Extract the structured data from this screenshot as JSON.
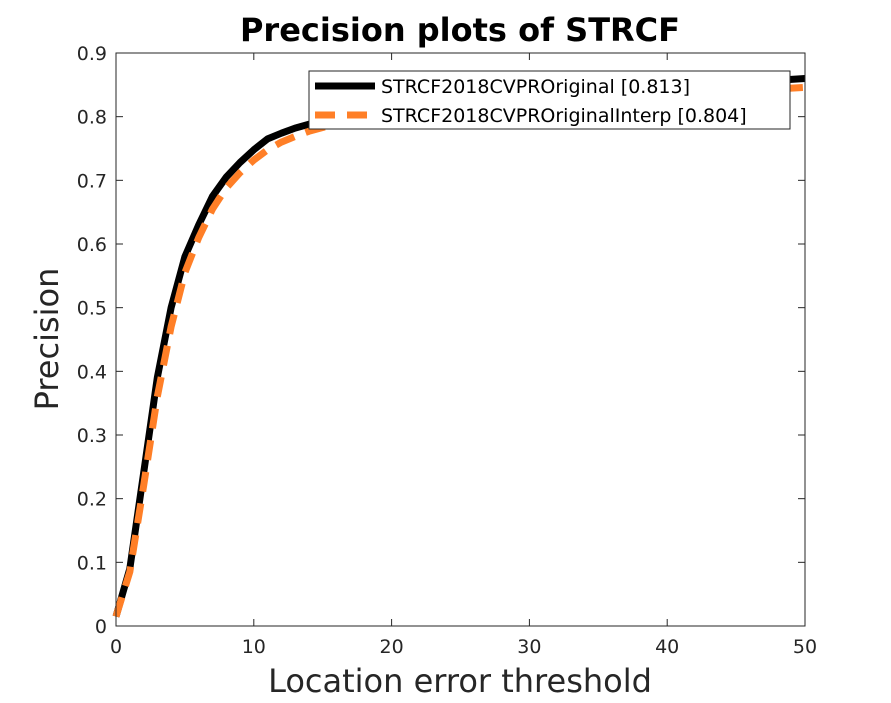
{
  "chart_data": {
    "type": "line",
    "title": "Precision plots of STRCF",
    "xlabel": "Location error threshold",
    "ylabel": "Precision",
    "xlim": [
      0,
      50
    ],
    "ylim": [
      0,
      0.9
    ],
    "xticks": [
      "0",
      "10",
      "20",
      "30",
      "40",
      "50"
    ],
    "yticks": [
      "0",
      "0.1",
      "0.2",
      "0.3",
      "0.4",
      "0.5",
      "0.6",
      "0.7",
      "0.8",
      "0.9"
    ],
    "grid": false,
    "legend_position": "top-right",
    "series": [
      {
        "name": "STRCF2018CVPROriginal [0.813]",
        "color": "#000000",
        "style": "solid",
        "x": [
          0,
          1,
          2,
          3,
          4,
          5,
          6,
          7,
          8,
          9,
          10,
          11,
          12,
          13,
          14,
          15,
          16,
          17,
          18,
          19,
          20,
          22,
          25,
          28,
          30,
          35,
          40,
          45,
          50
        ],
        "y": [
          0.015,
          0.09,
          0.24,
          0.39,
          0.5,
          0.58,
          0.63,
          0.675,
          0.705,
          0.728,
          0.748,
          0.765,
          0.774,
          0.782,
          0.788,
          0.793,
          0.797,
          0.8,
          0.803,
          0.806,
          0.808,
          0.812,
          0.817,
          0.822,
          0.826,
          0.836,
          0.845,
          0.853,
          0.86
        ]
      },
      {
        "name": "STRCF2018CVPROriginalInterp [0.804]",
        "color": "#FF7F27",
        "style": "dashed",
        "x": [
          0,
          1,
          2,
          3,
          4,
          5,
          6,
          7,
          8,
          9,
          10,
          11,
          12,
          13,
          14,
          15,
          16,
          17,
          18,
          19,
          20,
          22,
          25,
          28,
          30,
          35,
          40,
          45,
          50
        ],
        "y": [
          0.015,
          0.085,
          0.22,
          0.36,
          0.47,
          0.555,
          0.61,
          0.655,
          0.688,
          0.712,
          0.732,
          0.748,
          0.76,
          0.769,
          0.777,
          0.783,
          0.788,
          0.792,
          0.795,
          0.798,
          0.8,
          0.804,
          0.809,
          0.814,
          0.818,
          0.826,
          0.834,
          0.84,
          0.846
        ]
      }
    ]
  }
}
